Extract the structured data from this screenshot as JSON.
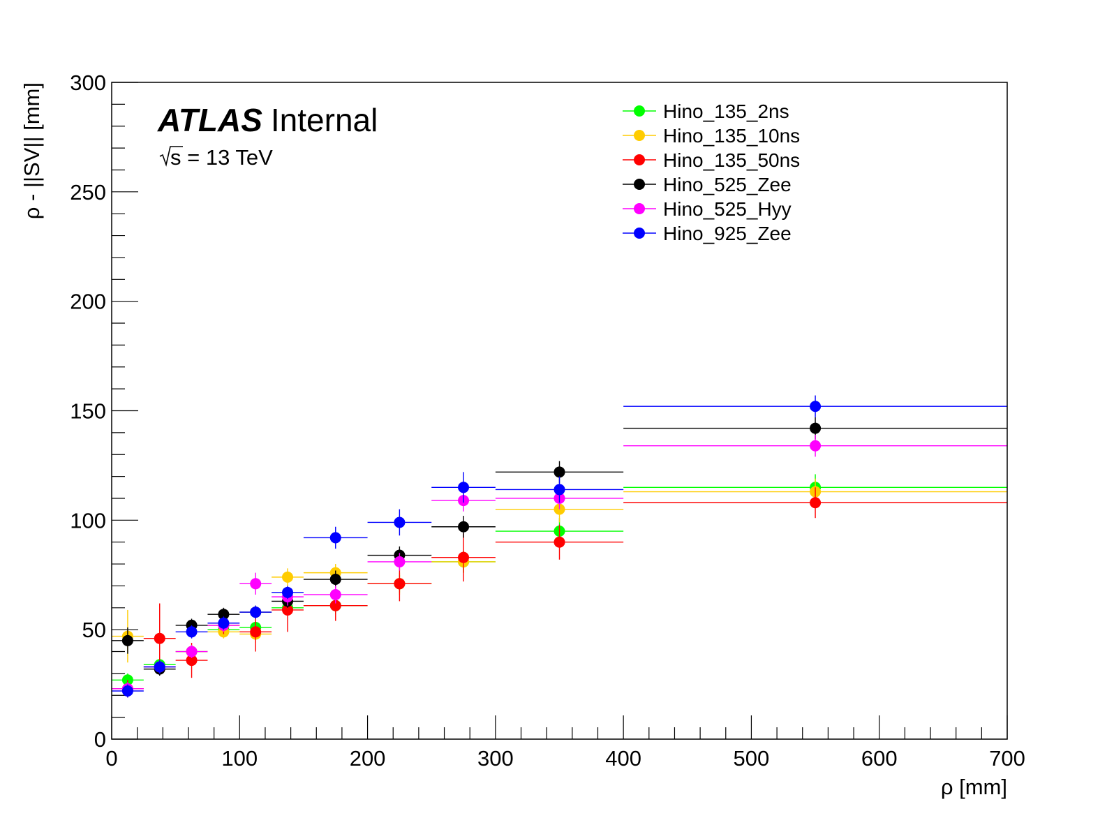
{
  "chart_data": {
    "type": "scatter",
    "xlabel": "ρ [mm]",
    "ylabel": "ρ - ||SV|| [mm]",
    "xlim": [
      0,
      700
    ],
    "ylim": [
      0,
      300
    ],
    "x_major_ticks": [
      0,
      100,
      200,
      300,
      400,
      500,
      600,
      700
    ],
    "y_major_ticks": [
      0,
      50,
      100,
      150,
      200,
      250,
      300
    ],
    "x_tick_labels": [
      "0",
      "100",
      "200",
      "300",
      "400",
      "500",
      "600",
      "700"
    ],
    "y_tick_labels": [
      "0",
      "50",
      "100",
      "150",
      "200",
      "250",
      "300"
    ],
    "grid": false,
    "legend_position": "top-right",
    "annotations": {
      "experiment": "ATLAS",
      "status": "Internal",
      "energy": "s = 13 TeV"
    },
    "bins": [
      [
        0,
        25
      ],
      [
        25,
        50
      ],
      [
        50,
        75
      ],
      [
        75,
        100
      ],
      [
        100,
        125
      ],
      [
        125,
        150
      ],
      [
        150,
        200
      ],
      [
        200,
        250
      ],
      [
        250,
        300
      ],
      [
        300,
        400
      ],
      [
        400,
        700
      ]
    ],
    "series": [
      {
        "name": "Hino_135_2ns",
        "color": "#00ff00",
        "y": [
          27,
          34,
          40,
          50,
          51,
          60,
          61,
          71,
          81,
          95,
          115
        ],
        "yerr": [
          3,
          3,
          3,
          3,
          3,
          3,
          4,
          4,
          5,
          6,
          6
        ]
      },
      {
        "name": "Hino_135_10ns",
        "color": "#ffcc00",
        "y": [
          47,
          33,
          40,
          49,
          48,
          74,
          76,
          71,
          81,
          105,
          113
        ],
        "yerr": [
          12,
          3,
          3,
          3,
          4,
          4,
          4,
          5,
          5,
          6,
          6
        ]
      },
      {
        "name": "Hino_135_50ns",
        "color": "#ff0000",
        "y": [
          23,
          46,
          36,
          52,
          49,
          59,
          61,
          71,
          83,
          90,
          108
        ],
        "yerr": [
          4,
          16,
          8,
          4,
          9,
          10,
          7,
          8,
          11,
          8,
          7
        ]
      },
      {
        "name": "Hino_525_Zee",
        "color": "#000000",
        "y": [
          45,
          32,
          52,
          57,
          58,
          63,
          73,
          84,
          97,
          122,
          142
        ],
        "yerr": [
          6,
          3,
          3,
          3,
          3,
          3,
          4,
          4,
          5,
          5,
          5
        ]
      },
      {
        "name": "Hino_525_Hyy",
        "color": "#ff00ff",
        "y": [
          23,
          33,
          40,
          52,
          71,
          65,
          66,
          81,
          109,
          110,
          134
        ],
        "yerr": [
          3,
          3,
          3,
          3,
          5,
          4,
          4,
          4,
          5,
          5,
          5
        ]
      },
      {
        "name": "Hino_925_Zee",
        "color": "#0000ff",
        "y": [
          22,
          33,
          49,
          53,
          58,
          67,
          92,
          99,
          115,
          114,
          152
        ],
        "yerr": [
          3,
          3,
          3,
          3,
          3,
          3,
          5,
          6,
          7,
          6,
          5
        ]
      }
    ]
  }
}
